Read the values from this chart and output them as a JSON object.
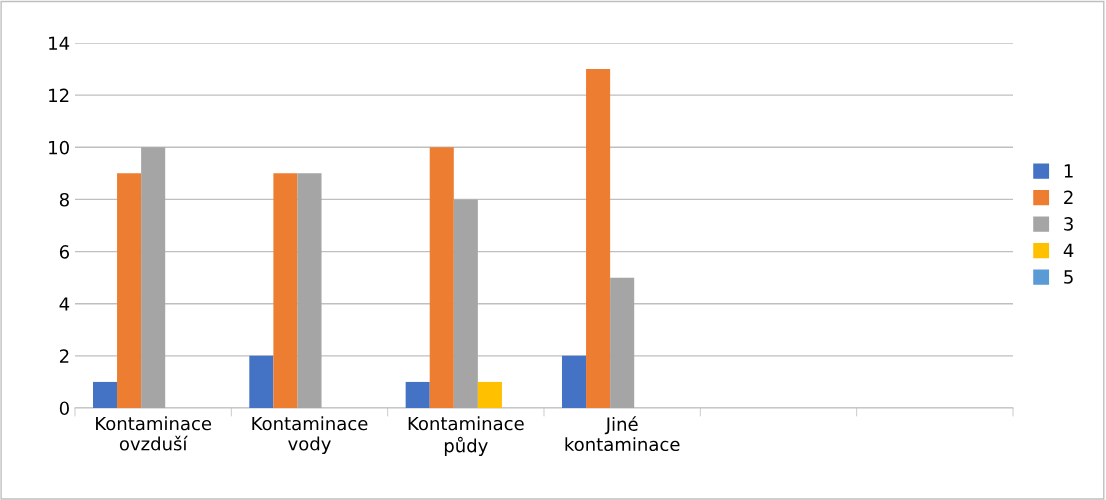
{
  "chart_data": {
    "type": "bar",
    "categories": [
      "Kontaminace\novzduší",
      "Kontaminace\nvody",
      "Kontaminace\npůdy",
      "Jiné\nkontaminace",
      null,
      null
    ],
    "series": [
      {
        "name": "1",
        "color": "#4472c4",
        "values": [
          1,
          2,
          1,
          2,
          null,
          null
        ]
      },
      {
        "name": "2",
        "color": "#ed7d31",
        "values": [
          9,
          9,
          10,
          13,
          null,
          null
        ]
      },
      {
        "name": "3",
        "color": "#a5a5a5",
        "values": [
          10,
          9,
          8,
          5,
          null,
          null
        ]
      },
      {
        "name": "4",
        "color": "#ffc000",
        "values": [
          null,
          null,
          1,
          null,
          null,
          null
        ]
      },
      {
        "name": "5",
        "color": "#5b9bd5",
        "values": [
          null,
          null,
          null,
          null,
          null,
          null
        ]
      }
    ],
    "ylim": [
      0,
      14
    ],
    "yticks": [
      0,
      2,
      4,
      6,
      8,
      10,
      12,
      14
    ],
    "grid": "y",
    "legend": "right"
  }
}
